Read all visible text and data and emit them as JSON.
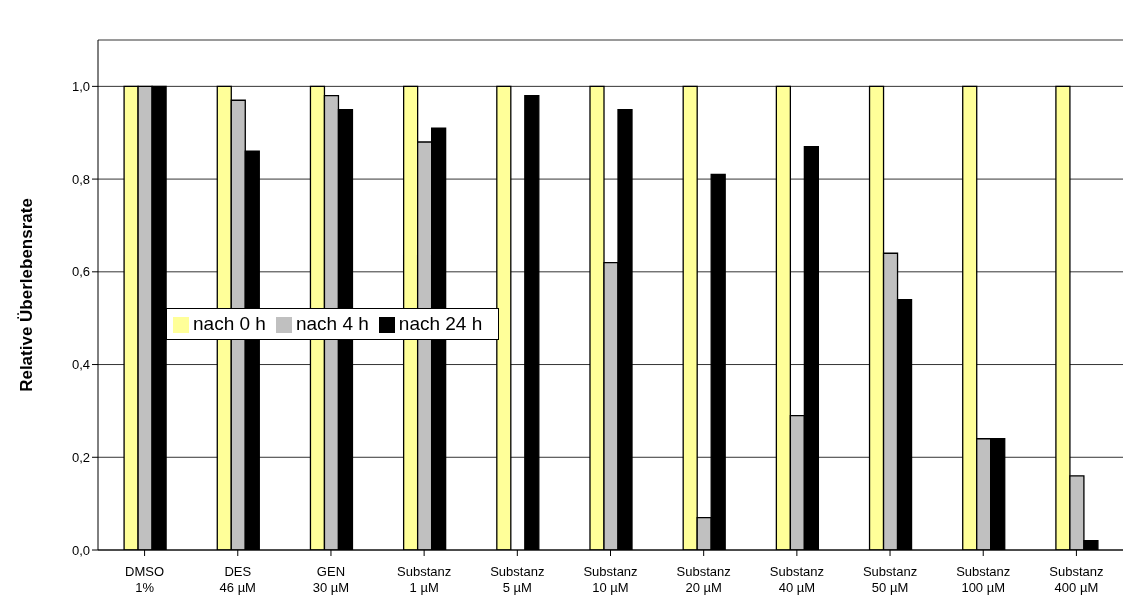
{
  "chart_data": {
    "type": "bar",
    "ylabel": "Relative Überlebensrate",
    "categories": [
      "DMSO 1%",
      "DES 46 µM",
      "GEN 30 µM",
      "Substanz 1 µM",
      "Substanz 5 µM",
      "Substanz 10 µM",
      "Substanz 20 µM",
      "Substanz 40 µM",
      "Substanz 50 µM",
      "Substanz 100 µM",
      "Substanz 400 µM"
    ],
    "series": [
      {
        "name": "nach 0 h",
        "color": "#ffff99",
        "values": [
          1,
          1,
          1,
          1,
          1,
          1,
          1,
          1,
          1,
          1,
          1
        ]
      },
      {
        "name": "nach 4 h",
        "color": "#c0c0c0",
        "values": [
          1,
          0.97,
          0.98,
          0.88,
          0,
          0.62,
          0.07,
          0.29,
          0.64,
          0.24,
          0.16
        ]
      },
      {
        "name": "nach 24 h",
        "color": "#000000",
        "values": [
          1,
          0.86,
          0.95,
          0.91,
          0.98,
          0.95,
          0.81,
          0.87,
          0.54,
          0.24,
          0.02
        ]
      }
    ],
    "ylim": [
      0,
      1.1
    ],
    "yticks": [
      {
        "value": 0,
        "label": "0,0"
      },
      {
        "value": 0.2,
        "label": "0,2"
      },
      {
        "value": 0.4,
        "label": "0,4"
      },
      {
        "value": 0.6,
        "label": "0,6"
      },
      {
        "value": 0.8,
        "label": "0,8"
      },
      {
        "value": 1,
        "label": "1,0"
      }
    ],
    "grid": "y",
    "legend": "left"
  }
}
